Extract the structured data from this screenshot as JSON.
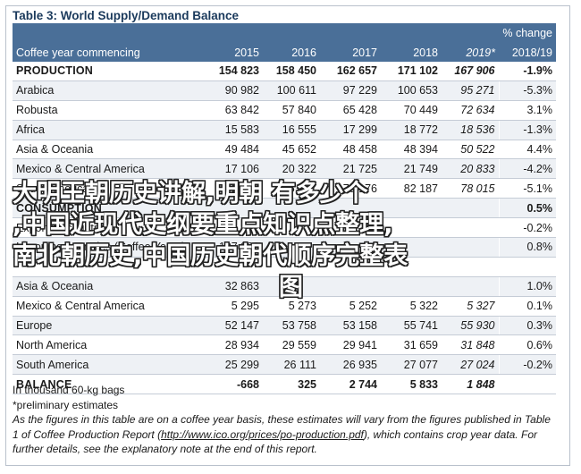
{
  "title": "Table 3: World Supply/Demand Balance",
  "header": {
    "pct_line1": "% change",
    "col_label": "Coffee year commencing",
    "years": [
      "2015",
      "2016",
      "2017",
      "2018",
      "2019*"
    ],
    "pct_line2": "2018/19"
  },
  "rows": [
    {
      "name": "PRODUCTION",
      "values": [
        "154 823",
        "158 450",
        "162 657",
        "171 102",
        "167 906"
      ],
      "pct": "-1.9%",
      "main": true
    },
    {
      "name": "Arabica",
      "values": [
        "90 982",
        "100 611",
        "97 229",
        "100 653",
        "95 271"
      ],
      "pct": "-5.3%"
    },
    {
      "name": "Robusta",
      "values": [
        "63 842",
        "57 840",
        "65 428",
        "70 449",
        "72 634"
      ],
      "pct": "3.1%"
    },
    {
      "name": "Africa",
      "values": [
        "15 583",
        "16 555",
        "17 299",
        "18 772",
        "18 536"
      ],
      "pct": "-1.3%"
    },
    {
      "name": "Asia & Oceania",
      "values": [
        "49 484",
        "45 652",
        "48 458",
        "48 394",
        "50 522"
      ],
      "pct": "4.4%"
    },
    {
      "name": "Mexico & Central America",
      "values": [
        "17 106",
        "20 322",
        "21 725",
        "21 749",
        "20 833"
      ],
      "pct": "-4.2%"
    },
    {
      "name": "South America",
      "values": [
        "72 649",
        "75 921",
        "75 176",
        "82 187",
        "78 015"
      ],
      "pct": "-5.1%"
    },
    {
      "name": "CONSUMPTION",
      "values": "",
      "pct": "0.5%",
      "main": true
    },
    {
      "name": "Exporting countries",
      "values": "",
      "pct": "-0.2%"
    },
    {
      "name": "Importing countries (Coffee Years)",
      "values": [
        "107 093",
        "",
        "",
        "",
        ""
      ],
      "pct": "0.8%"
    },
    {
      "name": "",
      "values": "",
      "pct": ""
    },
    {
      "name": "Asia & Oceania",
      "values": [
        "32 863",
        "",
        "",
        "",
        ""
      ],
      "pct": "1.0%"
    },
    {
      "name": "Mexico & Central America",
      "values": [
        "5 295",
        "5 273",
        "5 252",
        "5 322",
        "5 327"
      ],
      "pct": "0.1%"
    },
    {
      "name": "Europe",
      "values": [
        "52 147",
        "53 758",
        "53 158",
        "55 741",
        "55 930"
      ],
      "pct": "0.3%"
    },
    {
      "name": "North America",
      "values": [
        "28 934",
        "29 559",
        "29 941",
        "31 659",
        "31 848"
      ],
      "pct": "0.6%"
    },
    {
      "name": "South America",
      "values": [
        "25 299",
        "26 111",
        "26 935",
        "27 077",
        "27 024"
      ],
      "pct": "-0.2%"
    },
    {
      "name": "BALANCE",
      "values": [
        "-668",
        "325",
        "2 744",
        "5 833",
        "1 848"
      ],
      "pct": "",
      "main": true
    }
  ],
  "notes": {
    "unit": "In thousand 60-kg bags",
    "prelim": "*preliminary estimates",
    "para_start": "As the figures in this table are on a coffee year basis, these estimates will vary from the figures published in Table 1 of Coffee Production Report (",
    "link": "http://www.ico.org/prices/po-production.pdf",
    "para_mid": "), which contains crop year data.",
    "para_end": "For further details, see the explanatory note at the end of this report."
  },
  "watermark": {
    "line1": "大明王朝历史讲解,明朝 有多少个",
    "line2": ",中国近现代史纲要重点知识点整理,",
    "line3": "南北朝历史,中国历史朝代顺序完整表",
    "line4": "图"
  }
}
